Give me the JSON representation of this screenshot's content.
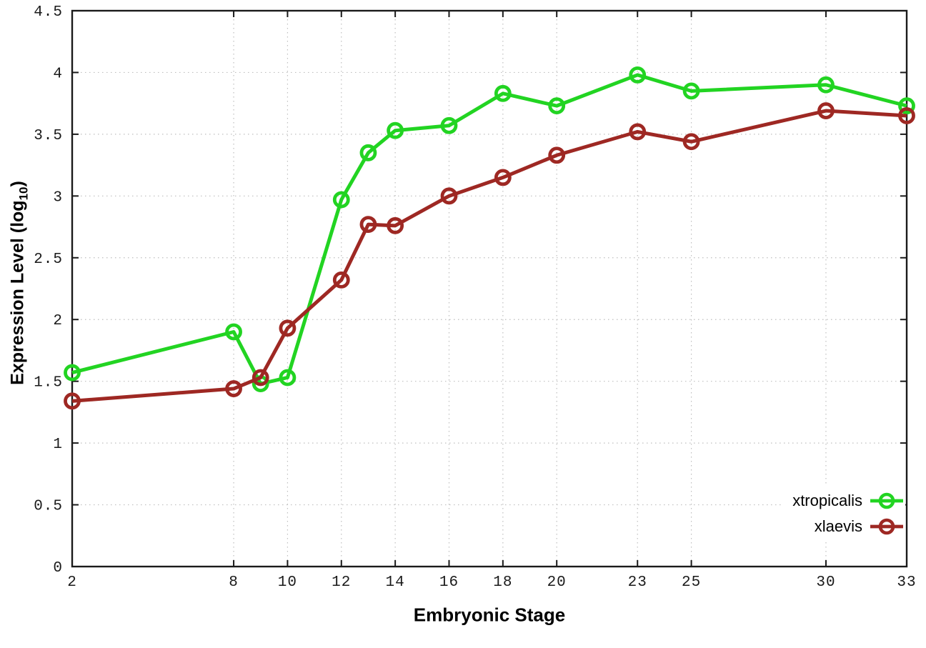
{
  "page": {
    "background": "#ffffff"
  },
  "labels": {
    "y_prefix": "Expression Level (log",
    "y_sub": "10",
    "y_suffix": ")",
    "x_label": "Embryonic Stage"
  },
  "chart_data": {
    "type": "line",
    "title": "",
    "xlabel": "Embryonic Stage",
    "ylabel": "Expression Level (log10)",
    "xlim": [
      2,
      33
    ],
    "ylim": [
      0,
      4.5
    ],
    "x_ticks": [
      2,
      8,
      10,
      12,
      14,
      16,
      18,
      20,
      23,
      25,
      30,
      33
    ],
    "x_tick_labels": [
      "2",
      "8",
      "10",
      "12",
      "14",
      "16",
      "18",
      "20",
      "23",
      "25",
      "30",
      "33"
    ],
    "y_ticks": [
      0,
      0.5,
      1,
      1.5,
      2,
      2.5,
      3,
      3.5,
      4,
      4.5
    ],
    "y_tick_labels": [
      "0",
      "0.5",
      "1",
      "1.5",
      "2",
      "2.5",
      "3",
      "3.5",
      "4",
      "4.5"
    ],
    "grid": true,
    "grid_style": "dotted",
    "grid_color": "#bfbfbf",
    "border_color": "#1a1a1a",
    "legend_position": "bottom-right",
    "marker": "open-circle",
    "series": [
      {
        "name": "xtropicalis",
        "color": "#22d422",
        "x": [
          2,
          8,
          9,
          10,
          12,
          13,
          14,
          16,
          18,
          20,
          23,
          25,
          30,
          33
        ],
        "values": [
          1.57,
          1.9,
          1.48,
          1.53,
          2.97,
          3.35,
          3.53,
          3.57,
          3.83,
          3.73,
          3.98,
          3.85,
          3.9,
          3.73
        ]
      },
      {
        "name": "xlaevis",
        "color": "#9e2823",
        "x": [
          2,
          8,
          9,
          10,
          12,
          13,
          14,
          16,
          18,
          20,
          23,
          25,
          30,
          33
        ],
        "values": [
          1.34,
          1.44,
          1.53,
          1.93,
          2.32,
          2.77,
          2.76,
          3.0,
          3.15,
          3.33,
          3.52,
          3.44,
          3.69,
          3.65
        ]
      }
    ]
  }
}
